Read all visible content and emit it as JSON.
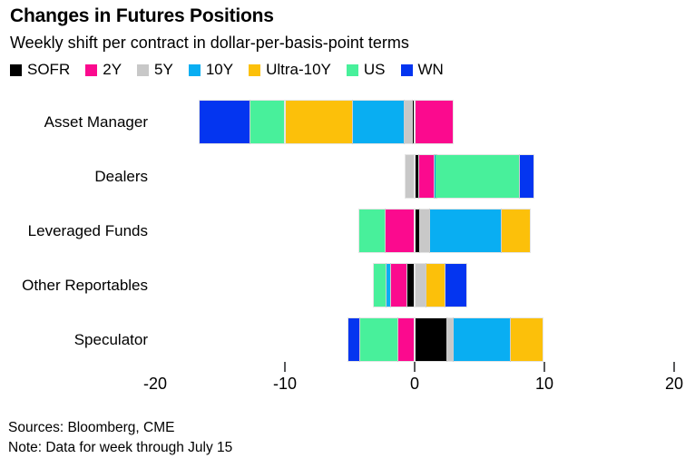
{
  "header": {
    "title": "Changes in Futures Positions",
    "subtitle": "Weekly shift per contract in dollar-per-basis-point terms"
  },
  "chart_data": {
    "type": "bar",
    "orientation": "horizontal",
    "stacked": true,
    "title": "Changes in Futures Positions",
    "subtitle": "Weekly shift per contract in dollar-per-basis-point terms",
    "value_unit": "dollar per basis point (weekly shift per contract)",
    "stacking_rule": "segments stack outward from zero in series order on each side",
    "categories": [
      "Asset Manager",
      "Dealers",
      "Leveraged Funds",
      "Other Reportables",
      "Speculator"
    ],
    "series": [
      {
        "name": "SOFR",
        "color": "#000000",
        "values": [
          -0.2,
          0.3,
          0.35,
          -0.6,
          2.45
        ]
      },
      {
        "name": "2Y",
        "color": "#FB0A8E",
        "values": [
          3.0,
          1.2,
          -2.25,
          -1.25,
          -1.3
        ]
      },
      {
        "name": "5Y",
        "color": "#C8C8C8",
        "values": [
          -0.6,
          -0.7,
          0.8,
          0.85,
          0.5
        ]
      },
      {
        "name": "10Y",
        "color": "#09AEF2",
        "values": [
          -4.0,
          0.1,
          5.5,
          -0.35,
          4.45
        ]
      },
      {
        "name": "Ultra-10Y",
        "color": "#FCC00A",
        "values": [
          -5.2,
          0,
          2.3,
          1.5,
          2.5
        ]
      },
      {
        "name": "US",
        "color": "#48F09B",
        "values": [
          -2.7,
          6.5,
          -2.05,
          -1.0,
          -2.9
        ]
      },
      {
        "name": "WN",
        "color": "#0435F0",
        "values": [
          -3.9,
          1.1,
          0,
          1.65,
          -0.95
        ]
      }
    ],
    "xlim": [
      -20,
      20
    ],
    "grid": false,
    "legend_position": "top",
    "x_ticks": [
      {
        "label": "-20",
        "value": -20,
        "has_mark": false
      },
      {
        "label": "-10",
        "value": -10,
        "has_mark": true
      },
      {
        "label": "0",
        "value": 0,
        "has_mark": true
      },
      {
        "label": "10",
        "value": 10,
        "has_mark": true
      },
      {
        "label": "20",
        "value": 20,
        "has_mark": true
      }
    ]
  },
  "footer": {
    "sources": "Sources: Bloomberg, CME",
    "note": "Note: Data for week through July 15"
  }
}
